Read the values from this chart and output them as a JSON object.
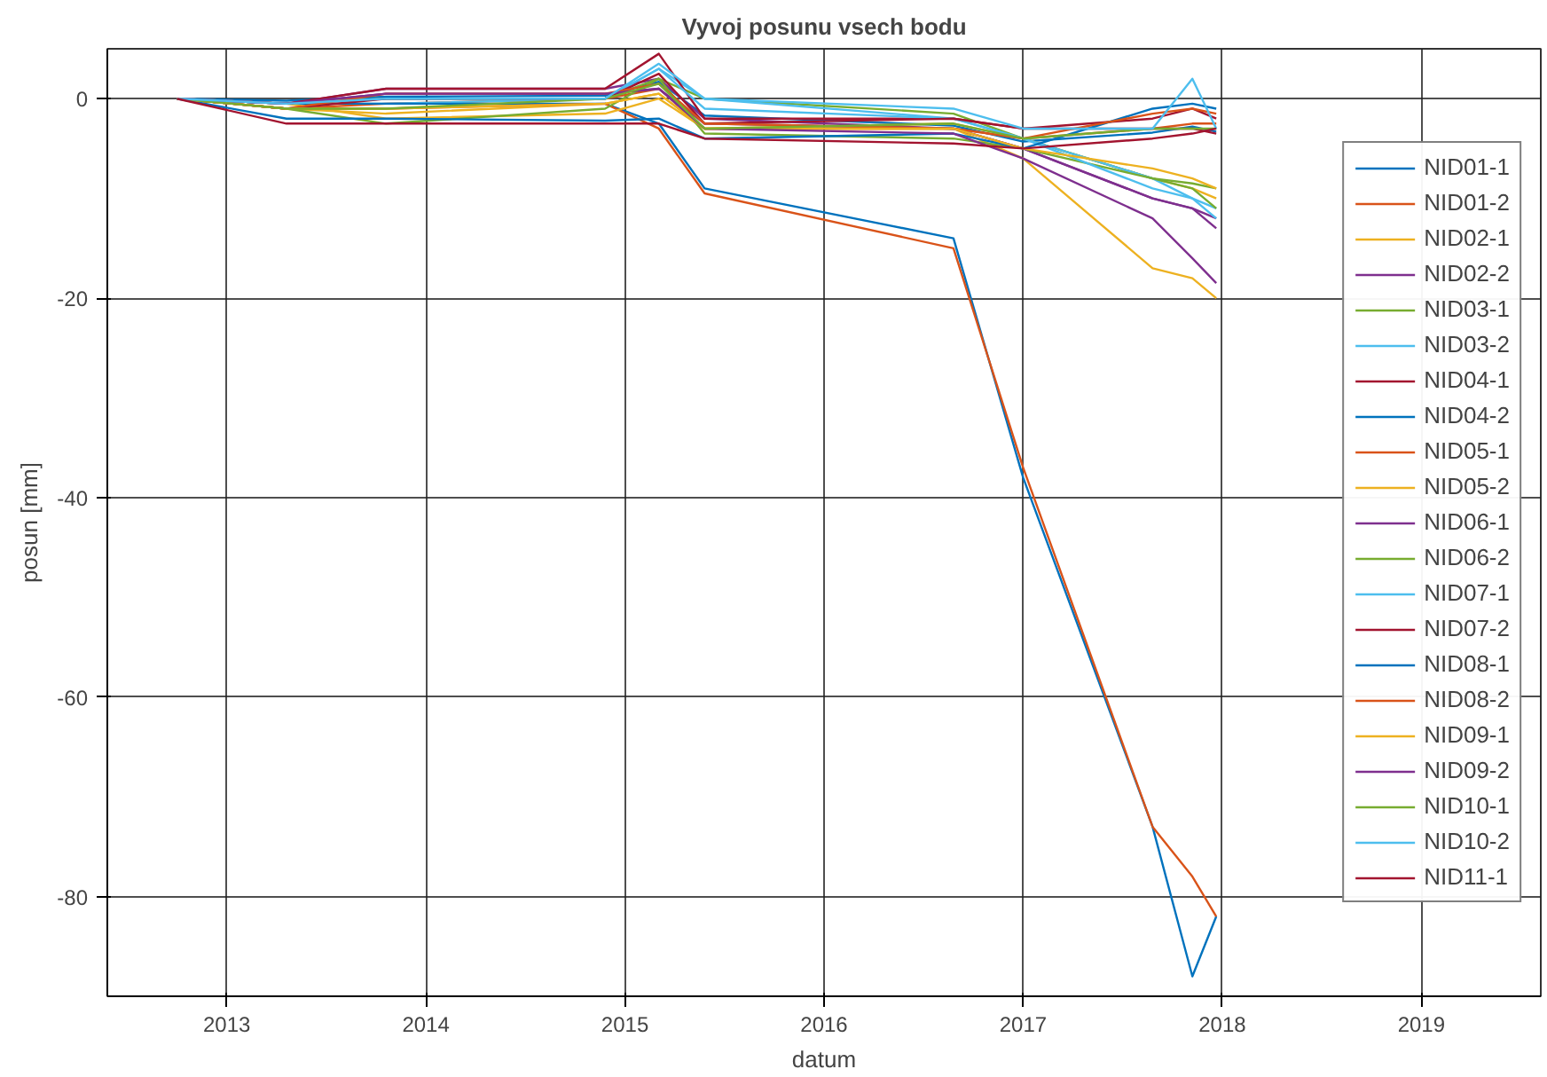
{
  "chart_data": {
    "type": "line",
    "title": "Vyvoj posunu vsech bodu",
    "xlabel": "datum",
    "ylabel": "posun [mm]",
    "x": [
      2012.75,
      2013.3,
      2013.8,
      2014.9,
      2015.17,
      2015.4,
      2016.65,
      2017.0,
      2017.65,
      2017.85,
      2017.97
    ],
    "xlim": [
      2012.4,
      2019.6
    ],
    "xticks": [
      2013,
      2014,
      2015,
      2016,
      2017,
      2018,
      2019
    ],
    "ylim": [
      -90,
      5
    ],
    "yticks": [
      -80,
      -60,
      -40,
      -20,
      0
    ],
    "grid": true,
    "legend": "right",
    "line_style": "solid",
    "marker": "none",
    "series": [
      {
        "name": "NID01-1",
        "color": "#0072bd",
        "values": [
          0,
          -0.2,
          0.2,
          0.3,
          1.7,
          -1.7,
          -2.7,
          -4.3,
          -3.4,
          -2.8,
          -3.3
        ]
      },
      {
        "name": "NID01-2",
        "color": "#d95319",
        "values": [
          0,
          -1,
          -0.5,
          0,
          1,
          -3,
          -3,
          -4,
          -3,
          -2.5,
          -2.5
        ]
      },
      {
        "name": "NID02-1",
        "color": "#edb120",
        "values": [
          0,
          -1,
          -1.5,
          -0.5,
          0.5,
          -3,
          -2.5,
          -4,
          -8,
          -9,
          -10
        ]
      },
      {
        "name": "NID02-2",
        "color": "#7e2f8e",
        "values": [
          0,
          -0.5,
          1,
          1,
          2,
          -2,
          -3,
          -5,
          -10,
          -11,
          -13
        ]
      },
      {
        "name": "NID03-1",
        "color": "#77ac30",
        "values": [
          0,
          -0.5,
          0,
          0,
          2,
          0,
          -1.5,
          -4,
          -8,
          -8.5,
          -9
        ]
      },
      {
        "name": "NID03-2",
        "color": "#4dbeee",
        "values": [
          0,
          -0.5,
          -0.5,
          0,
          3,
          0,
          -2,
          -4,
          -8,
          -10,
          -11
        ]
      },
      {
        "name": "NID04-1",
        "color": "#a2142f",
        "values": [
          0,
          -0.5,
          1,
          1,
          4.5,
          -2,
          -2,
          -3,
          -3,
          -3,
          -3.5
        ]
      },
      {
        "name": "NID04-2",
        "color": "#0072bd",
        "values": [
          0,
          -0.5,
          -0.5,
          -0.5,
          -2.5,
          -9,
          -14,
          -38,
          -73,
          -88,
          -82
        ]
      },
      {
        "name": "NID05-1",
        "color": "#d95319",
        "values": [
          0,
          -1,
          -1,
          -0.5,
          -3,
          -9.5,
          -15,
          -37,
          -73,
          -78,
          -82
        ]
      },
      {
        "name": "NID05-2",
        "color": "#edb120",
        "values": [
          0,
          -0.5,
          -2,
          -1.5,
          0,
          -3,
          -3,
          -6,
          -17,
          -18,
          -20
        ]
      },
      {
        "name": "NID06-1",
        "color": "#7e2f8e",
        "values": [
          0,
          -0.5,
          0.5,
          0.5,
          1,
          -2.5,
          -3,
          -5,
          -10,
          -11,
          -12
        ]
      },
      {
        "name": "NID06-2",
        "color": "#77ac30",
        "values": [
          0,
          -1,
          -2.5,
          -1,
          2,
          -3.5,
          -4,
          -5,
          -8,
          -9,
          -11
        ]
      },
      {
        "name": "NID07-1",
        "color": "#4dbeee",
        "values": [
          0,
          -0.5,
          0,
          0,
          3,
          -1,
          -2,
          -4,
          -9,
          -10,
          -12
        ]
      },
      {
        "name": "NID07-2",
        "color": "#a2142f",
        "values": [
          0,
          -1,
          0,
          0,
          2.5,
          -2.5,
          -2,
          -3,
          -2,
          -1,
          -2
        ]
      },
      {
        "name": "NID08-1",
        "color": "#0072bd",
        "values": [
          0,
          -2,
          -2,
          -2.2,
          -2,
          -4,
          -3.5,
          -5,
          -1,
          -0.5,
          -1
        ]
      },
      {
        "name": "NID08-2",
        "color": "#d95319",
        "values": [
          0,
          -1,
          0.5,
          0.5,
          1.5,
          -2.5,
          -3,
          -4,
          -1.5,
          -1,
          -1.5
        ]
      },
      {
        "name": "NID09-1",
        "color": "#edb120",
        "values": [
          0,
          -1,
          -1,
          -0.5,
          0.5,
          -3,
          -3,
          -5,
          -7,
          -8,
          -9
        ]
      },
      {
        "name": "NID09-2",
        "color": "#7e2f8e",
        "values": [
          0,
          -0.5,
          0.5,
          0.5,
          1,
          -3,
          -3.5,
          -6,
          -12,
          -16,
          -18.5
        ]
      },
      {
        "name": "NID10-1",
        "color": "#77ac30",
        "values": [
          0,
          -1,
          -1,
          0,
          1.5,
          -3,
          -2.5,
          -4,
          -3,
          -3,
          -3
        ]
      },
      {
        "name": "NID10-2",
        "color": "#4dbeee",
        "values": [
          0,
          -0.5,
          0,
          0,
          3.5,
          0,
          -1,
          -3,
          -3,
          2,
          -3
        ]
      },
      {
        "name": "NID11-1",
        "color": "#a2142f",
        "values": [
          0,
          -2.5,
          -2.5,
          -2.5,
          -2.5,
          -4,
          -4.5,
          -5,
          -4,
          -3.5,
          -3
        ]
      }
    ]
  }
}
